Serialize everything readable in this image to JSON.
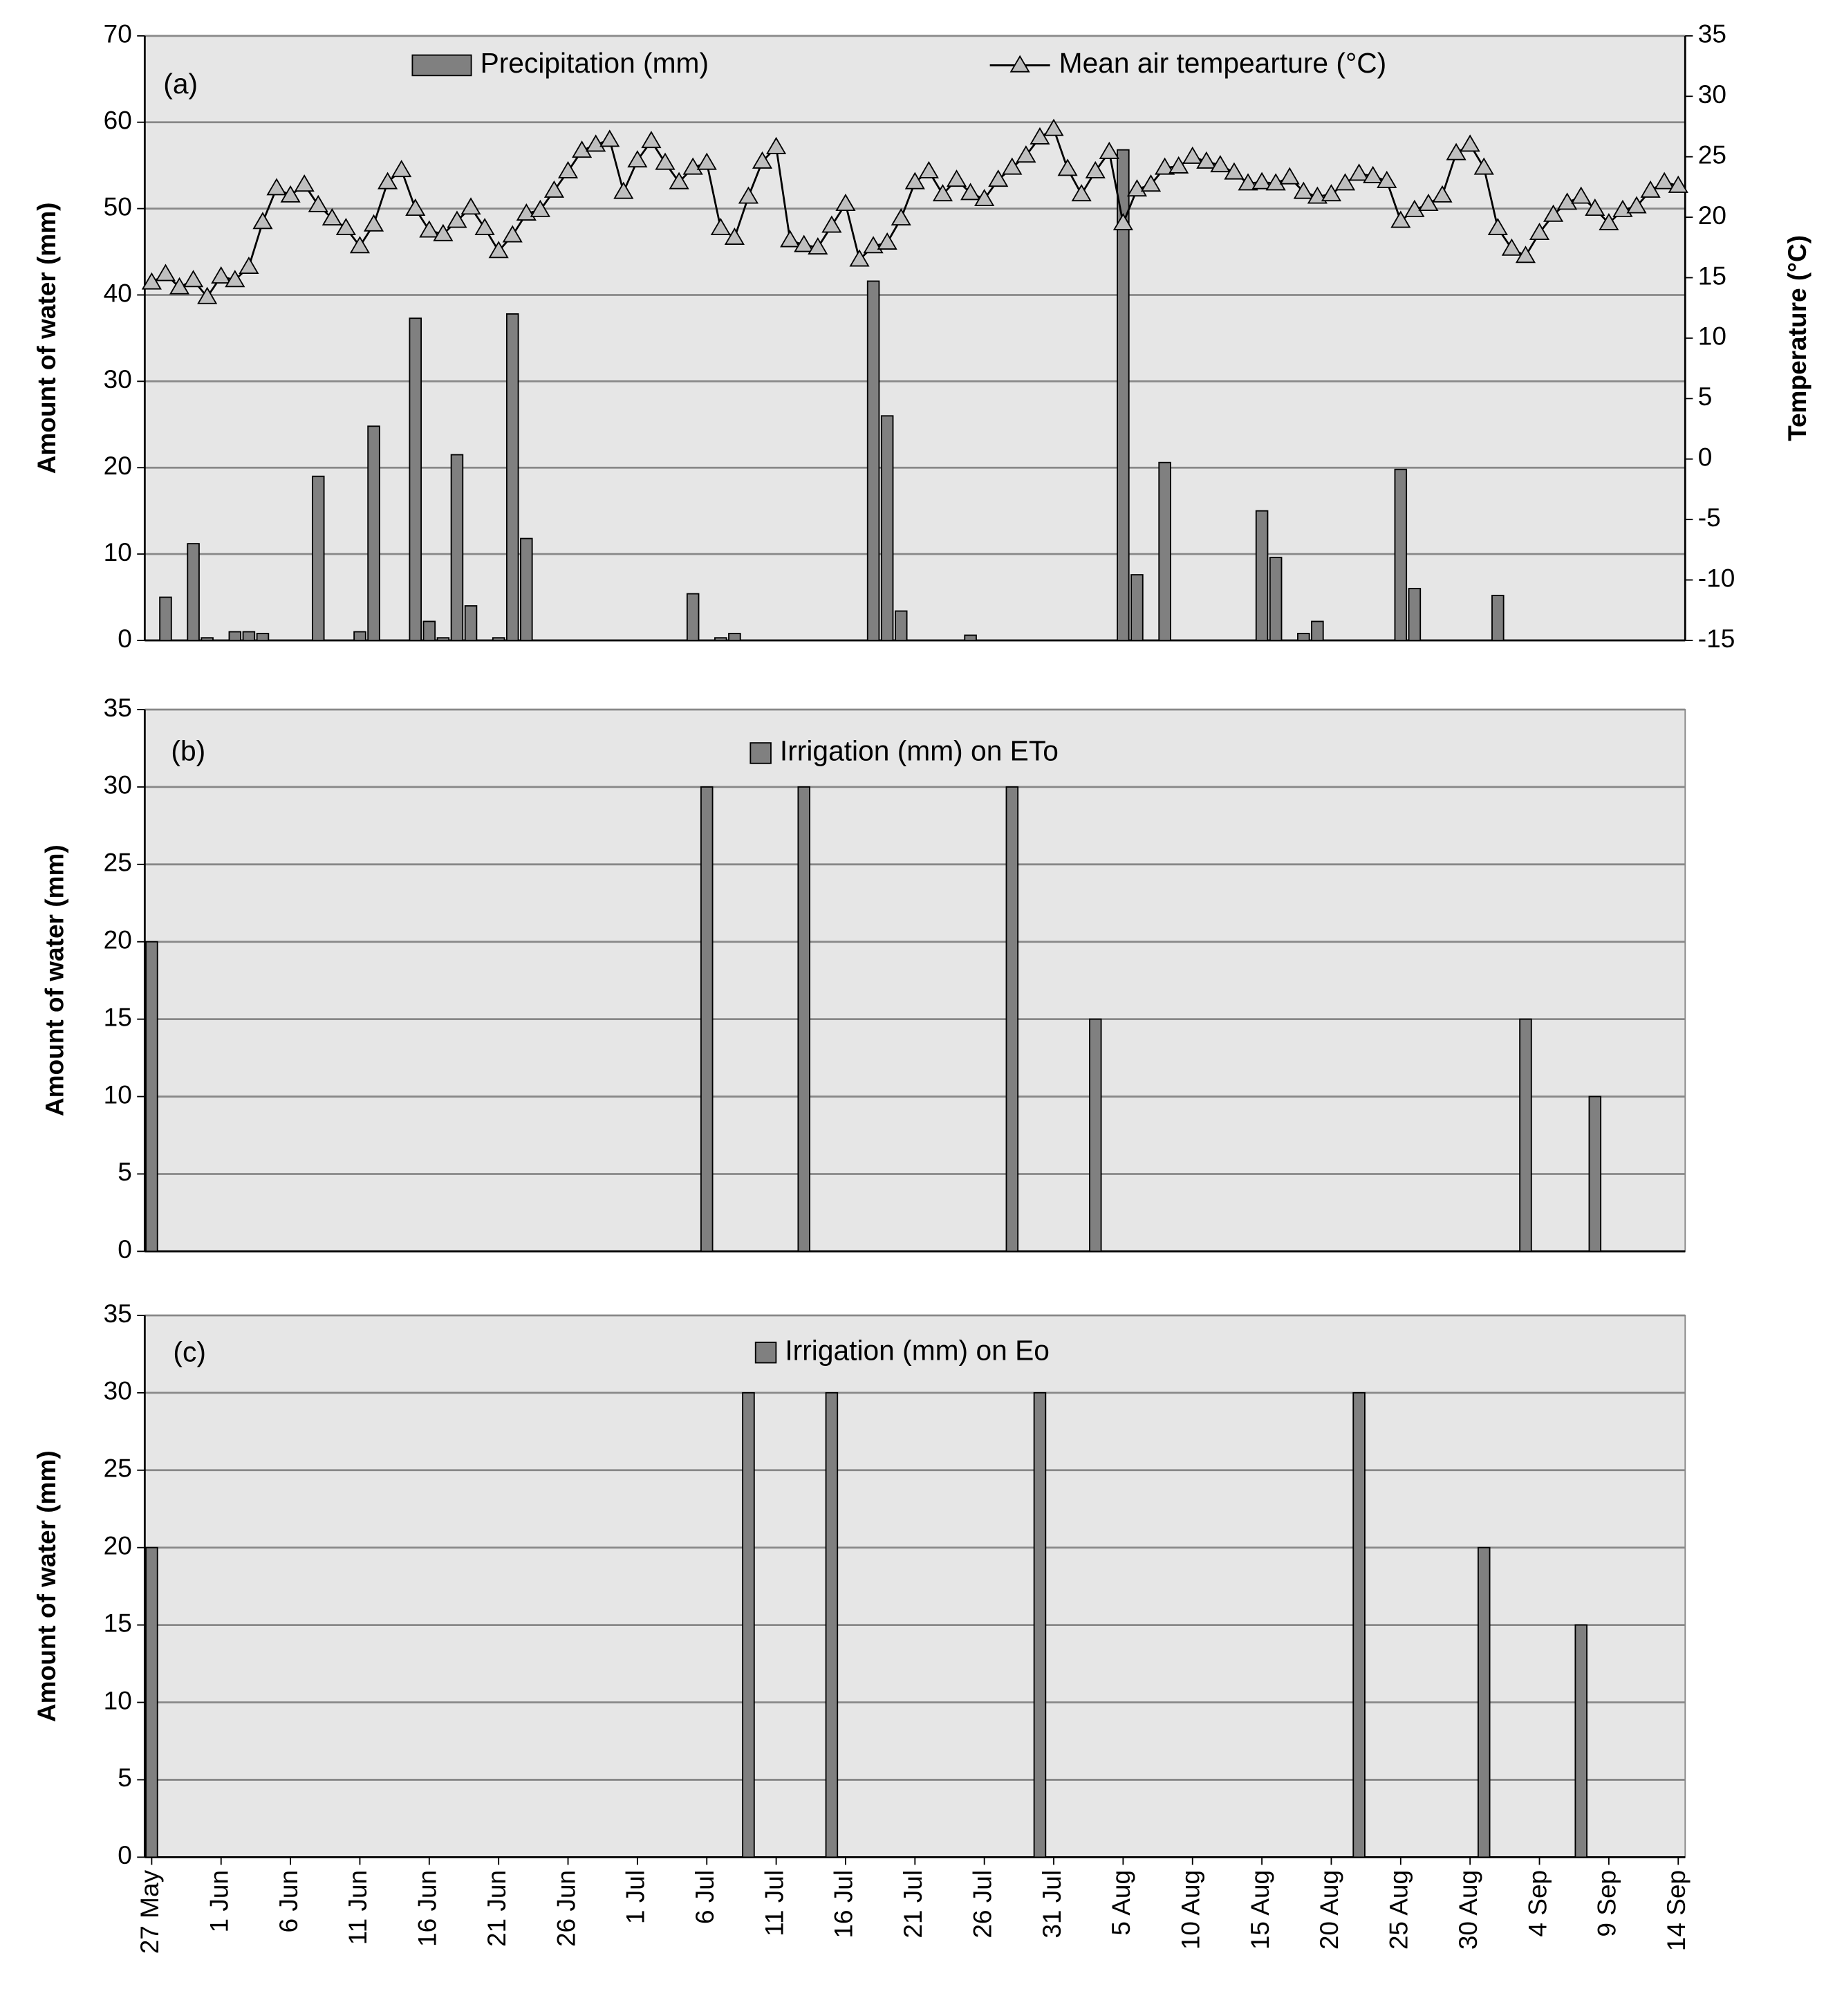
{
  "chart_data": [
    {
      "type": "bar",
      "annotation": "(a)",
      "ylabel": "Amount of water (mm)",
      "y2label": "Temperature (°C)",
      "ylim": [
        0,
        70
      ],
      "yticks": [
        0,
        10,
        20,
        30,
        40,
        50,
        60,
        70
      ],
      "y2lim": [
        -15,
        35
      ],
      "y2ticks": [
        -15,
        -10,
        -5,
        0,
        5,
        10,
        15,
        20,
        25,
        30,
        35
      ],
      "grid": true,
      "series": [
        {
          "name": "Precipitation (mm)",
          "type": "bar",
          "color": "#808080",
          "values": [
            0,
            5,
            0,
            11.2,
            0.3,
            0,
            1,
            1,
            0.8,
            0,
            0,
            0,
            19,
            0,
            0,
            1,
            24.8,
            0,
            0,
            37.3,
            2.2,
            0.3,
            21.5,
            4,
            0,
            0.3,
            37.8,
            11.8,
            0,
            0,
            0,
            0,
            0,
            0,
            0,
            0,
            0,
            0,
            0,
            5.4,
            0,
            0.3,
            0.8,
            0,
            0,
            0,
            0,
            0,
            0,
            0,
            0,
            0,
            41.6,
            26,
            3.4,
            0,
            0,
            0,
            0,
            0.6,
            0,
            0,
            0,
            0,
            0,
            0,
            0,
            0,
            0,
            0,
            56.8,
            7.6,
            0,
            20.6,
            0,
            0,
            0,
            0,
            0,
            0,
            15,
            9.6,
            0,
            0.8,
            2.2,
            0,
            0,
            0,
            0,
            0,
            19.8,
            6,
            0,
            0,
            0,
            0,
            0,
            5.2,
            0,
            0,
            0,
            0,
            0,
            0,
            0,
            0,
            0,
            0,
            0,
            0,
            0
          ]
        },
        {
          "name": "Mean air tempearture (°C)",
          "type": "line",
          "axis": "y2",
          "color": "#000000",
          "marker_color": "#bfbfbf",
          "values": [
            14.6,
            15.3,
            14.2,
            14.8,
            13.4,
            15.1,
            14.8,
            15.9,
            19.6,
            22.4,
            21.8,
            22.7,
            21.0,
            19.9,
            19.1,
            17.6,
            19.4,
            22.9,
            23.9,
            20.7,
            18.9,
            18.6,
            19.7,
            20.8,
            19.1,
            17.2,
            18.5,
            20.3,
            20.6,
            22.2,
            23.8,
            25.5,
            26.0,
            26.4,
            22.1,
            24.7,
            26.3,
            24.5,
            22.9,
            24.1,
            24.5,
            19.1,
            18.3,
            21.7,
            24.6,
            25.8,
            18.1,
            17.7,
            17.5,
            19.3,
            21.1,
            16.5,
            17.6,
            17.9,
            19.9,
            22.9,
            23.8,
            21.9,
            23.1,
            22.0,
            21.5,
            23.1,
            24.1,
            25.1,
            26.6,
            27.3,
            24.0,
            21.9,
            23.8,
            25.4,
            19.5,
            22.3,
            22.7,
            24.1,
            24.2,
            25.0,
            24.6,
            24.3,
            23.7,
            22.8,
            22.9,
            22.8,
            23.3,
            22.1,
            21.7,
            21.9,
            22.8,
            23.6,
            23.4,
            23.0,
            19.7,
            20.6,
            21.1,
            21.8,
            25.3,
            26.0,
            24.1,
            19.1,
            17.4,
            16.8,
            18.7,
            20.2,
            21.2,
            21.7,
            20.7,
            19.5,
            20.6,
            20.9,
            22.2,
            22.9,
            22.6
          ]
        }
      ]
    },
    {
      "type": "bar",
      "annotation": "(b)",
      "ylabel": "Amount of water (mm)",
      "ylim": [
        0,
        35
      ],
      "yticks": [
        0,
        5,
        10,
        15,
        20,
        25,
        30,
        35
      ],
      "grid": true,
      "series": [
        {
          "name": "Irrigation (mm) on ETo",
          "type": "bar",
          "color": "#808080",
          "values": [
            20,
            0,
            0,
            0,
            0,
            0,
            0,
            0,
            0,
            0,
            0,
            0,
            0,
            0,
            0,
            0,
            0,
            0,
            0,
            0,
            0,
            0,
            0,
            0,
            0,
            0,
            0,
            0,
            0,
            0,
            0,
            0,
            0,
            0,
            0,
            0,
            0,
            0,
            0,
            0,
            30,
            0,
            0,
            0,
            0,
            0,
            0,
            30,
            0,
            0,
            0,
            0,
            0,
            0,
            0,
            0,
            0,
            0,
            0,
            0,
            0,
            0,
            30,
            0,
            0,
            0,
            0,
            0,
            15,
            0,
            0,
            0,
            0,
            0,
            0,
            0,
            0,
            0,
            0,
            0,
            0,
            0,
            0,
            0,
            0,
            0,
            0,
            0,
            0,
            0,
            0,
            0,
            0,
            0,
            0,
            0,
            0,
            0,
            0,
            15,
            0,
            0,
            0,
            0,
            10,
            0,
            0,
            0,
            0,
            0,
            0
          ]
        }
      ]
    },
    {
      "type": "bar",
      "annotation": "(c)",
      "ylabel": "Amount of water (mm)",
      "ylim": [
        0,
        35
      ],
      "yticks": [
        0,
        5,
        10,
        15,
        20,
        25,
        30,
        35
      ],
      "grid": true,
      "categories": [
        "27 May",
        null,
        null,
        null,
        null,
        "1 Jun",
        null,
        null,
        null,
        null,
        "6 Jun",
        null,
        null,
        null,
        null,
        "11 Jun",
        null,
        null,
        null,
        null,
        "16 Jun",
        null,
        null,
        null,
        null,
        "21 Jun",
        null,
        null,
        null,
        null,
        "26 Jun",
        null,
        null,
        null,
        null,
        "1 Jul",
        null,
        null,
        null,
        null,
        "6 Jul",
        null,
        null,
        null,
        null,
        "11 Jul",
        null,
        null,
        null,
        null,
        "16 Jul",
        null,
        null,
        null,
        null,
        "21 Jul",
        null,
        null,
        null,
        null,
        "26 Jul",
        null,
        null,
        null,
        null,
        "31 Jul",
        null,
        null,
        null,
        null,
        "5 Aug",
        null,
        null,
        null,
        null,
        "10 Aug",
        null,
        null,
        null,
        null,
        "15 Aug",
        null,
        null,
        null,
        null,
        "20 Aug",
        null,
        null,
        null,
        null,
        "25 Aug",
        null,
        null,
        null,
        null,
        "30 Aug",
        null,
        null,
        null,
        null,
        "4 Sep",
        null,
        null,
        null,
        null,
        "9 Sep",
        null,
        null,
        null,
        null,
        "14 Sep"
      ],
      "series": [
        {
          "name": "Irrigation (mm) on Eo",
          "type": "bar",
          "color": "#808080",
          "values": [
            20,
            0,
            0,
            0,
            0,
            0,
            0,
            0,
            0,
            0,
            0,
            0,
            0,
            0,
            0,
            0,
            0,
            0,
            0,
            0,
            0,
            0,
            0,
            0,
            0,
            0,
            0,
            0,
            0,
            0,
            0,
            0,
            0,
            0,
            0,
            0,
            0,
            0,
            0,
            0,
            0,
            0,
            0,
            30,
            0,
            0,
            0,
            0,
            0,
            30,
            0,
            0,
            0,
            0,
            0,
            0,
            0,
            0,
            0,
            0,
            0,
            0,
            0,
            0,
            30,
            0,
            0,
            0,
            0,
            0,
            0,
            0,
            0,
            0,
            0,
            0,
            0,
            0,
            0,
            0,
            0,
            0,
            0,
            0,
            0,
            0,
            0,
            30,
            0,
            0,
            0,
            0,
            0,
            0,
            0,
            0,
            20,
            0,
            0,
            0,
            0,
            0,
            0,
            15,
            0,
            0,
            0,
            0,
            0,
            0,
            0
          ]
        }
      ]
    }
  ]
}
